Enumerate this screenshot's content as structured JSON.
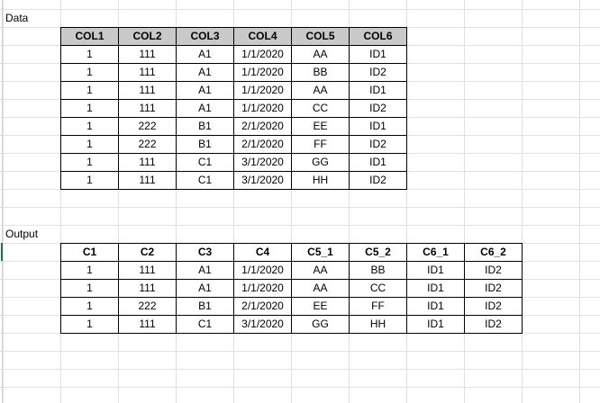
{
  "sheet": {
    "data_label": "Data",
    "output_label": "Output",
    "header_fill": "#c9c9c9",
    "active_row_marker_color": "#217346"
  },
  "data_table": {
    "headers": [
      "COL1",
      "COL2",
      "COL3",
      "COL4",
      "COL5",
      "COL6"
    ],
    "rows": [
      [
        "1",
        "111",
        "A1",
        "1/1/2020",
        "AA",
        "ID1"
      ],
      [
        "1",
        "111",
        "A1",
        "1/1/2020",
        "BB",
        "ID2"
      ],
      [
        "1",
        "111",
        "A1",
        "1/1/2020",
        "AA",
        "ID1"
      ],
      [
        "1",
        "111",
        "A1",
        "1/1/2020",
        "CC",
        "ID2"
      ],
      [
        "1",
        "222",
        "B1",
        "2/1/2020",
        "EE",
        "ID1"
      ],
      [
        "1",
        "222",
        "B1",
        "2/1/2020",
        "FF",
        "ID2"
      ],
      [
        "1",
        "111",
        "C1",
        "3/1/2020",
        "GG",
        "ID1"
      ],
      [
        "1",
        "111",
        "C1",
        "3/1/2020",
        "HH",
        "ID2"
      ]
    ]
  },
  "output_table": {
    "headers": [
      "C1",
      "C2",
      "C3",
      "C4",
      "C5_1",
      "C5_2",
      "C6_1",
      "C6_2"
    ],
    "rows": [
      [
        "1",
        "111",
        "A1",
        "1/1/2020",
        "AA",
        "BB",
        "ID1",
        "ID2"
      ],
      [
        "1",
        "111",
        "A1",
        "1/1/2020",
        "AA",
        "CC",
        "ID1",
        "ID2"
      ],
      [
        "1",
        "222",
        "B1",
        "2/1/2020",
        "EE",
        "FF",
        "ID1",
        "ID2"
      ],
      [
        "1",
        "111",
        "C1",
        "3/1/2020",
        "GG",
        "HH",
        "ID1",
        "ID2"
      ]
    ]
  }
}
